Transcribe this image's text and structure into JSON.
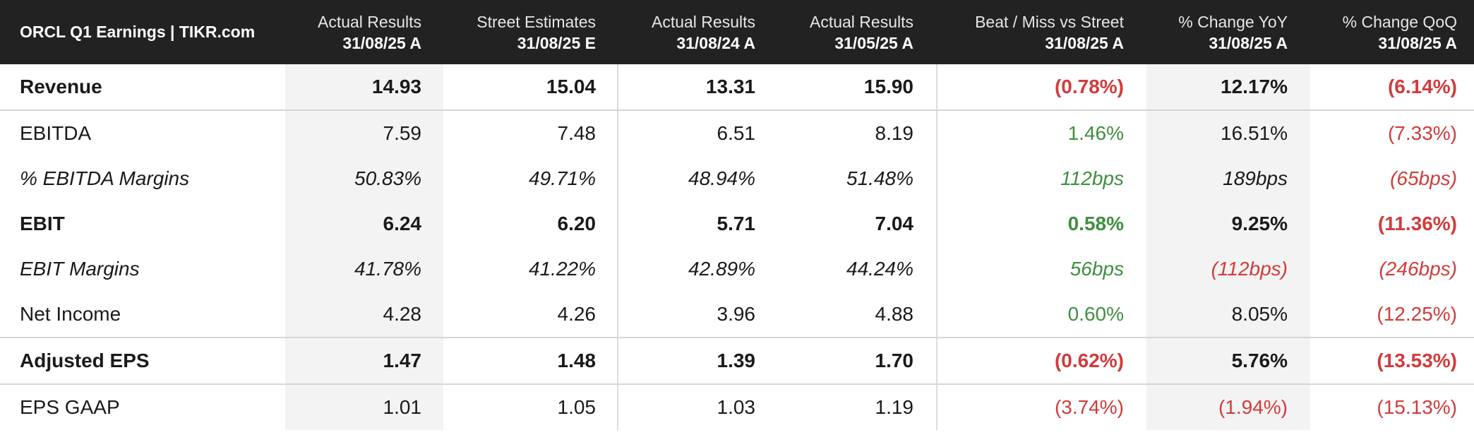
{
  "title": "ORCL Q1 Earnings | TIKR.com",
  "colors": {
    "header_bg": "#222222",
    "positive": "#3f8f3f",
    "negative": "#d23b3b",
    "shade": "#f3f3f3"
  },
  "columns": [
    {
      "line1": "Actual Results",
      "line2": "31/08/25 A"
    },
    {
      "line1": "Street Estimates",
      "line2": "31/08/25 E"
    },
    {
      "line1": "Actual Results",
      "line2": "31/08/24 A"
    },
    {
      "line1": "Actual Results",
      "line2": "31/05/25 A"
    },
    {
      "line1": "Beat / Miss vs Street",
      "line2": "31/08/25 A"
    },
    {
      "line1": "% Change YoY",
      "line2": "31/08/25 A"
    },
    {
      "line1": "% Change QoQ",
      "line2": "31/08/25 A"
    }
  ],
  "rows": [
    {
      "label": "Revenue",
      "style": "bold",
      "values": [
        "14.93",
        "15.04",
        "13.31",
        "15.90",
        "(0.78%)",
        "12.17%",
        "(6.14%)"
      ],
      "tones": [
        "",
        "",
        "",
        "",
        "red",
        "",
        "red"
      ]
    },
    {
      "label": "EBITDA",
      "style": "",
      "values": [
        "7.59",
        "7.48",
        "6.51",
        "8.19",
        "1.46%",
        "16.51%",
        "(7.33%)"
      ],
      "tones": [
        "",
        "",
        "",
        "",
        "green",
        "",
        "red"
      ]
    },
    {
      "label": "% EBITDA Margins",
      "style": "ital",
      "values": [
        "50.83%",
        "49.71%",
        "48.94%",
        "51.48%",
        "112bps",
        "189bps",
        "(65bps)"
      ],
      "tones": [
        "",
        "",
        "",
        "",
        "green",
        "",
        "red"
      ]
    },
    {
      "label": "EBIT",
      "style": "bold",
      "values": [
        "6.24",
        "6.20",
        "5.71",
        "7.04",
        "0.58%",
        "9.25%",
        "(11.36%)"
      ],
      "tones": [
        "",
        "",
        "",
        "",
        "green",
        "",
        "red"
      ]
    },
    {
      "label": "EBIT Margins",
      "style": "ital",
      "values": [
        "41.78%",
        "41.22%",
        "42.89%",
        "44.24%",
        "56bps",
        "(112bps)",
        "(246bps)"
      ],
      "tones": [
        "",
        "",
        "",
        "",
        "green",
        "red",
        "red"
      ]
    },
    {
      "label": "Net Income",
      "style": "",
      "values": [
        "4.28",
        "4.26",
        "3.96",
        "4.88",
        "0.60%",
        "8.05%",
        "(12.25%)"
      ],
      "tones": [
        "",
        "",
        "",
        "",
        "green",
        "",
        "red"
      ]
    },
    {
      "label": "Adjusted EPS",
      "style": "bold",
      "values": [
        "1.47",
        "1.48",
        "1.39",
        "1.70",
        "(0.62%)",
        "5.76%",
        "(13.53%)"
      ],
      "tones": [
        "",
        "",
        "",
        "",
        "red",
        "",
        "red"
      ]
    },
    {
      "label": "EPS GAAP",
      "style": "",
      "values": [
        "1.01",
        "1.05",
        "1.03",
        "1.19",
        "(3.74%)",
        "(1.94%)",
        "(15.13%)"
      ],
      "tones": [
        "",
        "",
        "",
        "",
        "red",
        "red",
        "red"
      ]
    }
  ]
}
